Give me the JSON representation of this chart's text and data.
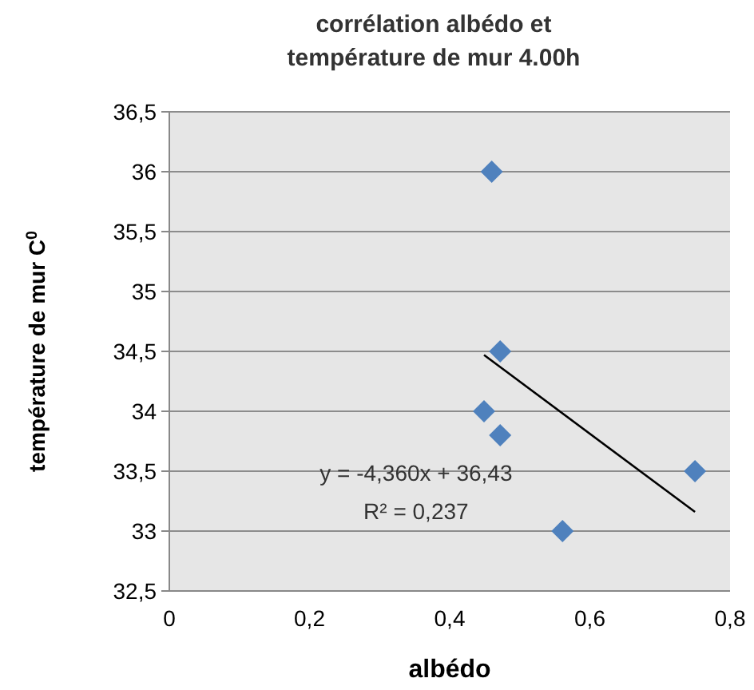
{
  "chart_data": {
    "type": "scatter",
    "title": "corrélation albédo et\ntempérature de mur 4.00h",
    "xlabel": "albédo",
    "ylabel": "température de mur C$^{0}$",
    "grid": "y",
    "xlim": [
      0,
      0.8
    ],
    "xticks": [
      0,
      {
        "value": 0.2,
        "label": "0,2"
      },
      {
        "value": 0.4,
        "label": "0,4"
      },
      {
        "value": 0.6,
        "label": "0,6"
      },
      {
        "value": 0.8,
        "label": "0,8"
      }
    ],
    "ylim": [
      32.5,
      36.5
    ],
    "yticks": [
      {
        "value": 32.5,
        "label": "32,5"
      },
      33,
      {
        "value": 33.5,
        "label": "33,5"
      },
      34,
      {
        "value": 34.5,
        "label": "34,5"
      },
      35,
      {
        "value": 35.5,
        "label": "35,5"
      },
      36,
      {
        "value": 36.5,
        "label": "36,5"
      }
    ],
    "series": [
      {
        "marker": "diamond",
        "color": "#4f81bd",
        "x": [
          0.46,
          0.472,
          0.449,
          0.472,
          0.561,
          0.75
        ],
        "values": [
          36,
          34.5,
          34,
          33.8,
          33,
          33.5
        ]
      },
      {
        "type": "line",
        "color": "#000000",
        "x": [
          0.449,
          0.75
        ],
        "values": [
          34.47,
          33.16
        ]
      }
    ],
    "annotations": [
      "y = -4,360x + 36,43",
      "R² = 0,237"
    ]
  }
}
